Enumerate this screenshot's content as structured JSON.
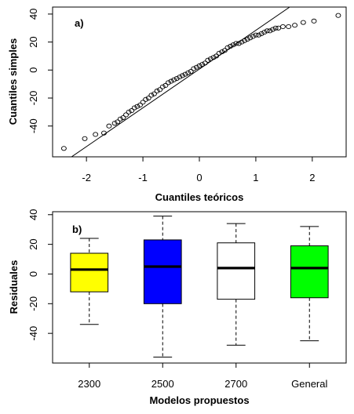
{
  "chart_data": [
    {
      "type": "scatter",
      "panel_label": "a)",
      "xlabel": "Cuantiles teóricos",
      "ylabel": "Cuantiles simples",
      "xlim": [
        -2.6,
        2.6
      ],
      "ylim": [
        -62,
        45
      ],
      "xticks": [
        -2,
        -1,
        0,
        1,
        2
      ],
      "yticks": [
        -40,
        -20,
        0,
        20,
        40
      ],
      "grid": false,
      "reference_line": {
        "x1": -2.3,
        "y1": -63,
        "x2": 1.6,
        "y2": 45
      },
      "x": [
        -2.4,
        -2.03,
        -1.84,
        -1.69,
        -1.6,
        -1.5,
        -1.45,
        -1.4,
        -1.35,
        -1.3,
        -1.25,
        -1.2,
        -1.15,
        -1.1,
        -1.05,
        -1.0,
        -0.95,
        -0.9,
        -0.85,
        -0.8,
        -0.75,
        -0.7,
        -0.65,
        -0.6,
        -0.55,
        -0.5,
        -0.45,
        -0.4,
        -0.35,
        -0.3,
        -0.25,
        -0.2,
        -0.15,
        -0.1,
        -0.05,
        0.0,
        0.05,
        0.1,
        0.15,
        0.2,
        0.25,
        0.3,
        0.35,
        0.4,
        0.45,
        0.5,
        0.55,
        0.6,
        0.65,
        0.7,
        0.75,
        0.8,
        0.85,
        0.9,
        0.95,
        1.0,
        1.05,
        1.1,
        1.15,
        1.2,
        1.25,
        1.3,
        1.35,
        1.4,
        1.48,
        1.58,
        1.69,
        1.84,
        2.03,
        2.46
      ],
      "y": [
        -56,
        -49,
        -46,
        -45,
        -40,
        -38,
        -37,
        -35,
        -34,
        -32,
        -30,
        -29,
        -27,
        -26,
        -25,
        -23,
        -21,
        -20,
        -18,
        -17,
        -15,
        -14,
        -12,
        -11,
        -9,
        -8,
        -7,
        -6,
        -5,
        -4,
        -3,
        -2,
        -1,
        1,
        2,
        3,
        4,
        5,
        7,
        8,
        9,
        10,
        12,
        13,
        14,
        16,
        17,
        18,
        19,
        19,
        20,
        21,
        22,
        23,
        24,
        25,
        25,
        26,
        27,
        28,
        28,
        29,
        30,
        30,
        31,
        31,
        32,
        34,
        35,
        39
      ]
    },
    {
      "type": "box",
      "panel_label": "b)",
      "xlabel": "Modelos propuestos",
      "ylabel": "Residuales",
      "ylim": [
        -60,
        42
      ],
      "yticks": [
        -40,
        -20,
        0,
        20,
        40
      ],
      "categories": [
        "2300",
        "2500",
        "2700",
        "General"
      ],
      "colors": [
        "#ffff00",
        "#0000ff",
        "#ffffff",
        "#00ff00"
      ],
      "boxes": [
        {
          "min": -34,
          "q1": -12,
          "median": 3,
          "q3": 14,
          "max": 24
        },
        {
          "min": -56,
          "q1": -20,
          "median": 5,
          "q3": 23,
          "max": 39
        },
        {
          "min": -48,
          "q1": -17,
          "median": 4,
          "q3": 21,
          "max": 34
        },
        {
          "min": -45,
          "q1": -16,
          "median": 4,
          "q3": 19,
          "max": 32
        }
      ]
    }
  ]
}
